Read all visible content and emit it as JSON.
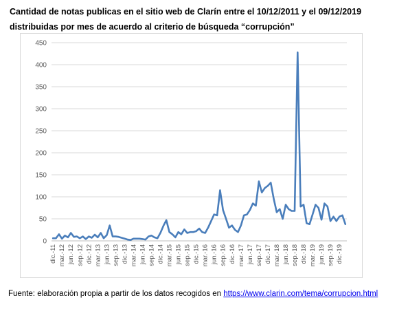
{
  "title_line1": "Cantidad de notas publicas en el sitio web de Clarín entre el 10/12/2011 y el 09/12/2019",
  "title_line2": "distribuidas por mes de acuerdo al criterio de búsqueda “corrupción”",
  "source_prefix": "Fuente: elaboración propia a partir de los datos recogidos en ",
  "source_link": "https://www.clarin.com/tema/corrupcion.html",
  "colors": {
    "line": "#4a7ebb",
    "grid": "#d9d9d9",
    "axis_text": "#595959"
  },
  "chart_data": {
    "type": "line",
    "title": "",
    "xlabel": "",
    "ylabel": "",
    "ylim": [
      0,
      450
    ],
    "yticks": [
      0,
      50,
      100,
      150,
      200,
      250,
      300,
      350,
      400,
      450
    ],
    "grid": true,
    "legend": "none",
    "x_tick_labels": [
      "dic.-11",
      "mar.-12",
      "jun.-12",
      "sep.-12",
      "dic.-12",
      "mar.-13",
      "jun.-13",
      "sep.-13",
      "dic.-13",
      "mar.-14",
      "jun.-14",
      "sep.-14",
      "dic.-14",
      "mar.-15",
      "jun.-15",
      "sep.-15",
      "dic.-15",
      "mar.-16",
      "jun.-16",
      "sep.-16",
      "dic.-16",
      "mar.-17",
      "jun.-17",
      "sep.-17",
      "dic.-17",
      "mar.-18",
      "jun.-18",
      "sep.-18",
      "dic.-18",
      "mar.-19",
      "jun.-19",
      "sep.-19",
      "dic.-19"
    ],
    "x_tick_step_months": 3,
    "series": [
      {
        "values": [
          6,
          6,
          15,
          5,
          12,
          8,
          18,
          9,
          10,
          6,
          10,
          4,
          10,
          7,
          14,
          8,
          18,
          6,
          13,
          35,
          10,
          10,
          9,
          7,
          5,
          3,
          2,
          5,
          5,
          5,
          4,
          3,
          10,
          12,
          8,
          6,
          18,
          34,
          47,
          20,
          15,
          8,
          20,
          15,
          26,
          18,
          20,
          20,
          22,
          28,
          20,
          18,
          30,
          45,
          60,
          58,
          115,
          70,
          50,
          30,
          35,
          25,
          20,
          35,
          58,
          60,
          70,
          85,
          80,
          135,
          110,
          120,
          125,
          132,
          95,
          65,
          72,
          50,
          82,
          72,
          68,
          68,
          428,
          78,
          82,
          40,
          38,
          60,
          82,
          75,
          48,
          85,
          78,
          45,
          55,
          45,
          55,
          58,
          38
        ]
      }
    ]
  }
}
